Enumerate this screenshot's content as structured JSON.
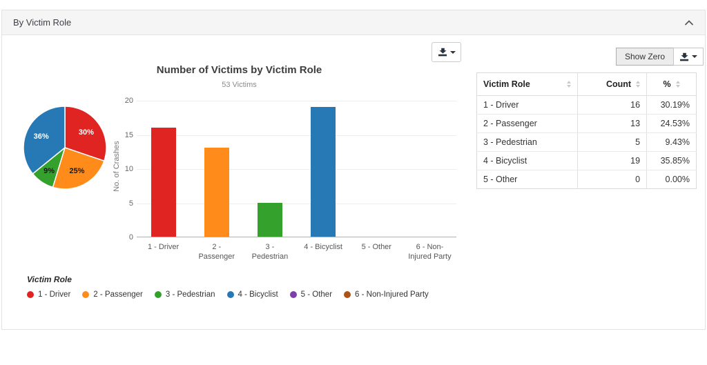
{
  "panel": {
    "title": "By Victim Role"
  },
  "toolbar": {
    "show_zero_label": "Show Zero"
  },
  "chart_data": [
    {
      "type": "pie",
      "categories": [
        "1 - Driver",
        "2 - Passenger",
        "3 - Pedestrian",
        "4 - Bicyclist"
      ],
      "values": [
        30.19,
        24.53,
        9.43,
        35.85
      ],
      "labels": [
        "30%",
        "25%",
        "9%",
        "36%"
      ],
      "colors": [
        "#e02421",
        "#ff8c1a",
        "#33a12c",
        "#2779b5"
      ],
      "label_text_colors": [
        "#ffffff",
        "#1a1a1a",
        "#1a1a1a",
        "#ffffff"
      ]
    },
    {
      "type": "bar",
      "title": "Number of Victims by Victim Role",
      "subtitle": "53 Victims",
      "ylabel": "No. of Crashes",
      "categories": [
        "1 - Driver",
        "2 -\nPassenger",
        "3 -\nPedestrian",
        "4 - Bicyclist",
        "5 - Other",
        "6 - Non-\nInjured Party"
      ],
      "values": [
        16,
        13,
        5,
        19,
        0,
        0
      ],
      "colors": [
        "#e02421",
        "#ff8c1a",
        "#33a12c",
        "#2779b5",
        "#7d3fa8",
        "#ad5318"
      ],
      "ylim": [
        0,
        20
      ],
      "yticks": [
        20,
        15,
        10,
        5,
        0
      ],
      "grid": true,
      "legend_position": "bottom"
    }
  ],
  "legend": {
    "title": "Victim Role",
    "items": [
      {
        "label": "1 - Driver",
        "color": "#e02421"
      },
      {
        "label": "2 - Passenger",
        "color": "#ff8c1a"
      },
      {
        "label": "3 - Pedestrian",
        "color": "#33a12c"
      },
      {
        "label": "4 - Bicyclist",
        "color": "#2779b5"
      },
      {
        "label": "5 - Other",
        "color": "#7d3fa8"
      },
      {
        "label": "6 - Non-Injured Party",
        "color": "#ad5318"
      }
    ]
  },
  "table": {
    "headers": [
      "Victim Role",
      "Count",
      "%"
    ],
    "rows": [
      {
        "role": "1 - Driver",
        "count": "16",
        "pct": "30.19%"
      },
      {
        "role": "2 - Passenger",
        "count": "13",
        "pct": "24.53%"
      },
      {
        "role": "3 - Pedestrian",
        "count": "5",
        "pct": "9.43%"
      },
      {
        "role": "4 - Bicyclist",
        "count": "19",
        "pct": "35.85%"
      },
      {
        "role": "5 - Other",
        "count": "0",
        "pct": "0.00%"
      }
    ]
  }
}
